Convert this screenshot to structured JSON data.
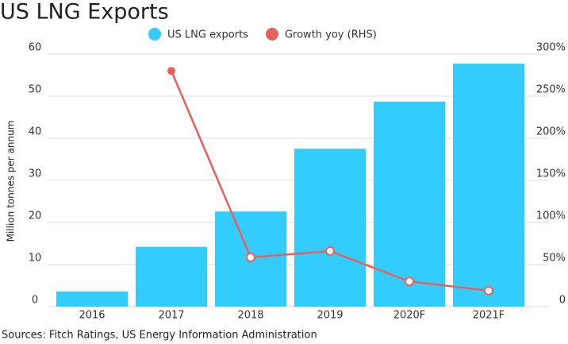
{
  "chart_data": {
    "type": "bar_line",
    "title": "US LNG Exports",
    "y_label": "Million tonnes per annum",
    "source": "Sources: Fitch Ratings, US Energy Information Administration",
    "categories": [
      "2016",
      "2017",
      "2018",
      "2019",
      "2020F",
      "2021F"
    ],
    "series": [
      {
        "name": "US LNG exports",
        "color": "#33ccff",
        "type": "bar",
        "values": [
          3.6,
          14.2,
          22.6,
          37.5,
          48.7,
          57.7
        ]
      },
      {
        "name": "Growth yoy (RHS)",
        "color": "#e8605a",
        "type": "line",
        "axis": "y2",
        "values": [
          null,
          280,
          58.5,
          66,
          30,
          19
        ]
      }
    ],
    "ylim": [
      0,
      60
    ],
    "yticks": [
      0,
      10,
      20,
      30,
      40,
      50,
      60
    ],
    "y2lim": [
      0,
      300
    ],
    "y2ticks": [
      0,
      {
        "value": 50,
        "label": "50%"
      },
      {
        "value": 100,
        "label": "100%"
      },
      {
        "value": 150,
        "label": "150%"
      },
      {
        "value": 200,
        "label": "200%"
      },
      {
        "value": 250,
        "label": "250%"
      },
      {
        "value": 300,
        "label": "300%"
      }
    ],
    "grid": true
  }
}
